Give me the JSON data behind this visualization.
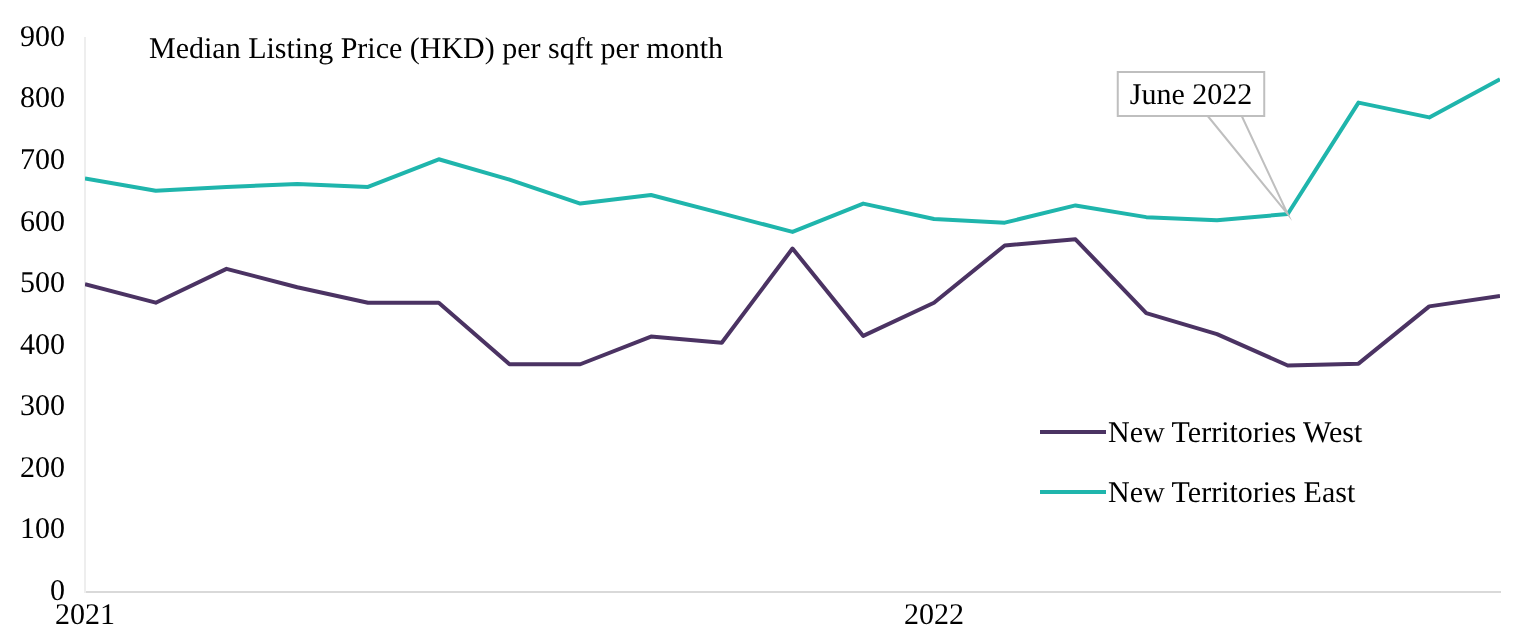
{
  "chart_data": {
    "type": "line",
    "title": "Median Listing Price (HKD) per sqft per month",
    "x": [
      "2021-01",
      "2021-02",
      "2021-03",
      "2021-04",
      "2021-05",
      "2021-06",
      "2021-07",
      "2021-08",
      "2021-09",
      "2021-10",
      "2021-11",
      "2021-12",
      "2022-01",
      "2022-02",
      "2022-03",
      "2022-04",
      "2022-05",
      "2022-06",
      "2022-07",
      "2022-08",
      "2022-09"
    ],
    "series": [
      {
        "name": "New Territories West",
        "color": "#4b3363",
        "values": [
          500,
          470,
          525,
          495,
          470,
          470,
          370,
          370,
          415,
          405,
          558,
          416,
          470,
          563,
          573,
          453,
          419,
          368,
          371,
          464,
          481
        ]
      },
      {
        "name": "New Territories East",
        "color": "#1fb5ac",
        "values": [
          672,
          652,
          658,
          663,
          658,
          703,
          670,
          631,
          645,
          615,
          585,
          631,
          606,
          600,
          628,
          609,
          604,
          614,
          795,
          771,
          833
        ]
      }
    ],
    "xlim": [
      "2021-01",
      "2022-09"
    ],
    "xticks": [
      "2021",
      "2022"
    ],
    "ylim": [
      0,
      900
    ],
    "yticks": [
      0,
      100,
      200,
      300,
      400,
      500,
      600,
      700,
      800,
      900
    ],
    "annotations": [
      "June 2022"
    ],
    "grid": false,
    "legend": "bottom right",
    "marker": "none",
    "line_style": "solid"
  }
}
